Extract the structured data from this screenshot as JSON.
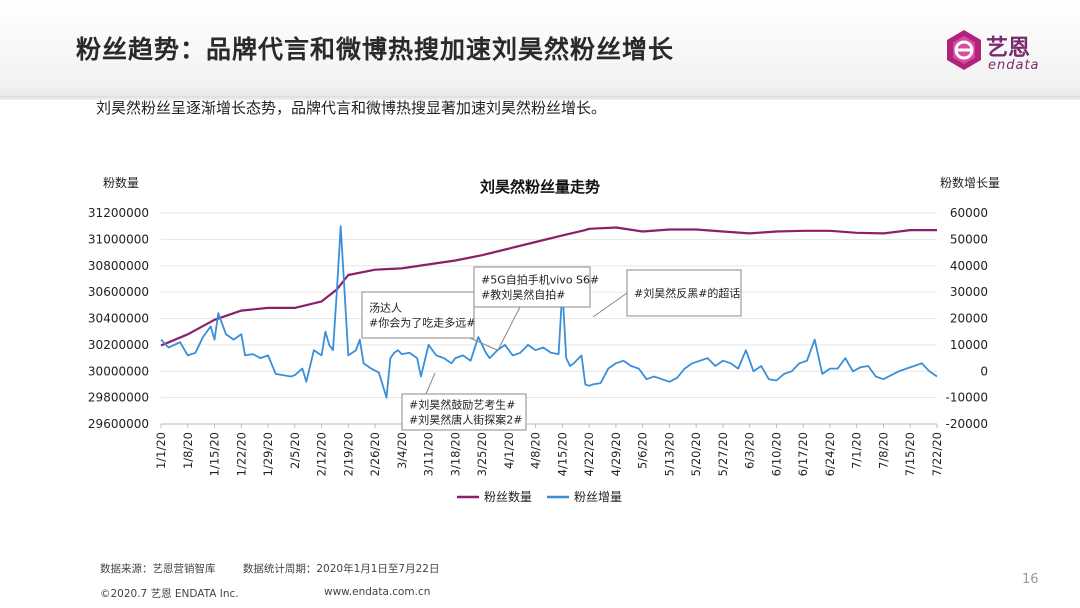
{
  "header": {
    "title": "粉丝趋势：品牌代言和微博热搜加速刘昊然粉丝增长",
    "logo_cn": "艺恩",
    "logo_en": "endata"
  },
  "subtitle": "刘昊然粉丝呈逐渐增长态势，品牌代言和微博热搜显著加速刘昊然粉丝增长。",
  "colors": {
    "fans": "#8b1f6b",
    "growth": "#3a8fd8",
    "logo": "#7a2a6e"
  },
  "chart_data": {
    "type": "line",
    "title": "刘昊然粉丝量走势",
    "ylabel_left": "粉数量",
    "ylabel_right": "粉数增长量",
    "ylim_left": [
      29600000,
      31200000
    ],
    "ylim_right": [
      -20000,
      60000
    ],
    "yticks_left": [
      "31200000",
      "31000000",
      "30800000",
      "30600000",
      "30400000",
      "30200000",
      "30000000",
      "29800000",
      "29600000"
    ],
    "yticks_right": [
      "60000",
      "50000",
      "40000",
      "30000",
      "20000",
      "10000",
      "0",
      "-10000",
      "-20000"
    ],
    "xticks": [
      "1/1/20",
      "1/8/20",
      "1/15/20",
      "1/22/20",
      "1/29/20",
      "2/5/20",
      "2/12/20",
      "2/19/20",
      "2/26/20",
      "3/4/20",
      "3/11/20",
      "3/18/20",
      "3/25/20",
      "4/1/20",
      "4/8/20",
      "4/15/20",
      "4/22/20",
      "4/29/20",
      "5/6/20",
      "5/13/20",
      "5/20/20",
      "5/27/20",
      "6/3/20",
      "6/10/20",
      "6/17/20",
      "6/24/20",
      "7/1/20",
      "7/8/20",
      "7/15/20",
      "7/22/20"
    ],
    "legend": [
      "粉丝数量",
      "粉丝增量"
    ],
    "legend_position": "bottom",
    "series": [
      {
        "name": "粉丝数量",
        "axis": "left",
        "x": [
          0,
          7,
          14,
          21,
          28,
          35,
          42,
          46,
          49,
          56,
          63,
          70,
          77,
          84,
          91,
          98,
          105,
          111,
          112,
          119,
          126,
          133,
          140,
          147,
          154,
          161,
          168,
          175,
          182,
          189,
          196,
          203
        ],
        "values": [
          30195000,
          30280000,
          30390000,
          30460000,
          30480000,
          30480000,
          30530000,
          30620000,
          30730000,
          30770000,
          30780000,
          30810000,
          30840000,
          30880000,
          30930000,
          30980000,
          31030000,
          31070000,
          31080000,
          31090000,
          31060000,
          31075000,
          31075000,
          31060000,
          31045000,
          31060000,
          31065000,
          31065000,
          31050000,
          31045000,
          31070000,
          31070000
        ]
      },
      {
        "name": "粉丝增量",
        "axis": "right",
        "x": [
          0,
          2,
          5,
          7,
          9,
          11,
          13,
          14,
          15,
          17,
          19,
          21,
          22,
          24,
          26,
          28,
          30,
          32,
          34,
          35,
          37,
          38,
          40,
          42,
          43,
          44,
          45,
          46,
          47,
          49,
          51,
          52,
          53,
          55,
          57,
          59,
          60,
          61,
          62,
          63,
          65,
          67,
          68,
          70,
          72,
          74,
          75,
          76,
          77,
          79,
          81,
          83,
          85,
          86,
          88,
          90,
          92,
          94,
          96,
          98,
          100,
          102,
          104,
          105,
          106,
          107,
          108,
          110,
          111,
          112,
          113,
          115,
          117,
          119,
          121,
          123,
          125,
          127,
          129,
          131,
          133,
          135,
          137,
          139,
          141,
          143,
          145,
          147,
          149,
          151,
          153,
          155,
          157,
          159,
          161,
          163,
          165,
          167,
          169,
          171,
          173,
          175,
          177,
          179,
          181,
          183,
          185,
          187,
          189,
          191,
          193,
          195,
          197,
          199,
          201,
          203
        ],
        "values": [
          12000,
          9000,
          11000,
          6000,
          7000,
          13000,
          17000,
          12000,
          22000,
          14000,
          12000,
          14000,
          6000,
          6500,
          5000,
          6000,
          -1000,
          -1500,
          -2000,
          -1500,
          1000,
          -4000,
          8000,
          6000,
          15000,
          10000,
          8000,
          30000,
          55000,
          6000,
          8000,
          12000,
          3000,
          1000,
          -500,
          -10000,
          5000,
          7000,
          8000,
          6500,
          7000,
          5000,
          -2000,
          10000,
          6000,
          5000,
          4000,
          3000,
          5000,
          6000,
          4000,
          13000,
          7000,
          5000,
          8000,
          10000,
          6000,
          7000,
          10000,
          8000,
          9000,
          7000,
          6500,
          31000,
          5000,
          2000,
          3000,
          6000,
          -5000,
          -5500,
          -5000,
          -4500,
          1000,
          3000,
          4000,
          2000,
          1000,
          -3000,
          -2000,
          -3000,
          -4000,
          -2500,
          1000,
          3000,
          4000,
          5000,
          2000,
          4000,
          3000,
          1000,
          8000,
          0,
          2000,
          -3000,
          -3500,
          -1000,
          0,
          3000,
          4000,
          12000,
          -1000,
          1000,
          1000,
          5000,
          0,
          1500,
          2000,
          -2000,
          -3000,
          -1500,
          0,
          1000,
          2000,
          3000,
          0,
          -2000
        ]
      }
    ],
    "annotations": [
      {
        "lines": [
          "汤达人",
          "#你会为了吃走多远#"
        ]
      },
      {
        "lines": [
          "#5G自拍手机vivo  S6#",
          "#教刘昊然自拍#"
        ]
      },
      {
        "lines": [
          "#刘昊然反黑#的超话"
        ]
      },
      {
        "lines": [
          "#刘昊然鼓励艺考生#",
          "#刘昊然唐人街探案2#"
        ]
      }
    ]
  },
  "footer": {
    "source": "数据来源：艺恩营销智库",
    "period": "数据统计周期：2020年1月1日至7月22日",
    "copyright": "©2020.7 艺恩 ENDATA Inc.",
    "website": "www.endata.com.cn",
    "page": "16"
  }
}
